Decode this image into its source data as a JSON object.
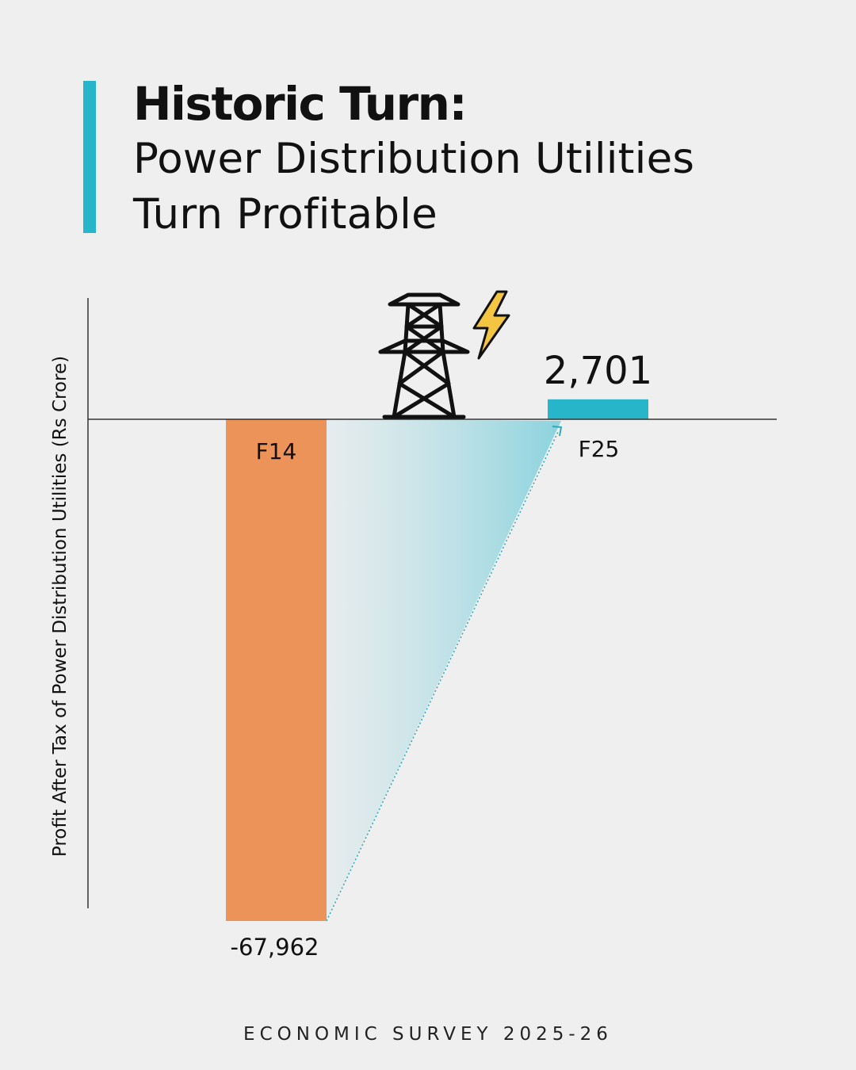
{
  "header": {
    "title": "Historic Turn:",
    "subtitle_line1": "Power Distribution Utilities",
    "subtitle_line2": "Turn Profitable"
  },
  "footer": {
    "source": "ECONOMIC SURVEY 2025-26"
  },
  "colors": {
    "accent": "#27b6c9",
    "negative_bar": "#ec935a",
    "text": "#111111"
  },
  "icons": [
    "power-tower-icon",
    "lightning-bolt-icon"
  ],
  "chart_data": {
    "type": "bar",
    "categories": [
      "F14",
      "F25"
    ],
    "values": [
      -67962,
      2701
    ],
    "value_labels": [
      "-67,962",
      "2,701"
    ],
    "ylabel": "Profit After Tax of Power Distribution Utilities (Rs Crore)",
    "ylim": [
      -67962,
      16500
    ],
    "grid": false,
    "legend": "none"
  }
}
